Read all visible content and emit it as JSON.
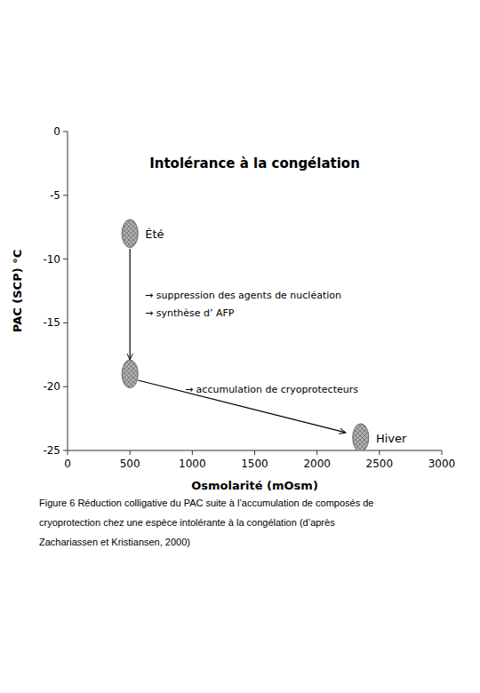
{
  "chart_data": {
    "type": "scatter",
    "title": "Intolérance à la congélation",
    "x_label": "Osmolarité (mOsm)",
    "y_label": "PAC (SCP) °C",
    "xlim": [
      0,
      3000
    ],
    "ylim": [
      -25,
      0
    ],
    "xticks": [
      0,
      500,
      1000,
      1500,
      2000,
      2500,
      3000
    ],
    "yticks": [
      0,
      -5,
      -10,
      -15,
      -20,
      -25
    ],
    "x": [
      500,
      500,
      2350
    ],
    "values": [
      -8,
      -19,
      -24
    ],
    "widths": [
      130,
      130,
      130
    ],
    "heights": [
      2.2,
      2.2,
      2.2
    ],
    "point_labels": [
      "Été",
      null,
      "Hiver"
    ],
    "color": "#b0b0b0",
    "arrows": [
      {
        "x1": 500,
        "y1": -9.2,
        "x2": 500,
        "y2": -17.9
      },
      {
        "x1": 565,
        "y1": -19.5,
        "x2": 2230,
        "y2": -23.6
      }
    ],
    "annotations": [
      {
        "x": 620,
        "y": -12.8,
        "text": "→ suppression des agents de nucléation"
      },
      {
        "x": 620,
        "y": -14.2,
        "text": "→ synthèse d’ AFP"
      },
      {
        "x": 940,
        "y": -20.2,
        "text": "→ accumulation de cryoprotecteurs"
      }
    ],
    "caption": [
      "Figure 6  Réduction colligative du PAC suite à l’accumulation de composés de",
      "cryoprotection chez une espèce intolérante à la congélation (d’après",
      "Zachariassen et Kristiansen, 2000)"
    ]
  }
}
